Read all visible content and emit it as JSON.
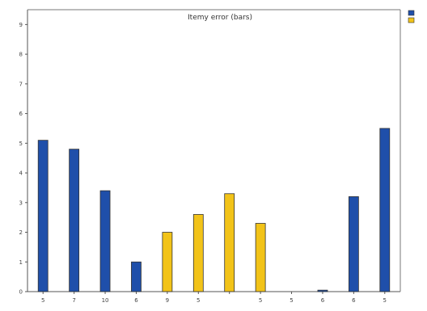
{
  "chart_data": {
    "type": "bar",
    "title": "Itemy error (bars)",
    "categories": [
      "5",
      "7",
      "10",
      "6",
      "9",
      "5",
      "",
      "5",
      "5",
      "6",
      "6",
      "5"
    ],
    "series": [
      {
        "name": "Blue",
        "color": "#1f4faa",
        "values": [
          5.1,
          4.8,
          3.4,
          1.0,
          null,
          null,
          null,
          null,
          null,
          0.05,
          3.2,
          5.5
        ]
      },
      {
        "name": "Yellow",
        "color": "#f2c318",
        "values": [
          null,
          null,
          null,
          null,
          2.0,
          2.6,
          3.3,
          2.3,
          null,
          null,
          null,
          null
        ]
      }
    ],
    "yticks": [
      "0",
      "1",
      "2",
      "3",
      "4",
      "5",
      "6",
      "7",
      "8",
      "9"
    ],
    "ylim": [
      0,
      9.5
    ],
    "legend_position": "top-right",
    "grid": false
  }
}
